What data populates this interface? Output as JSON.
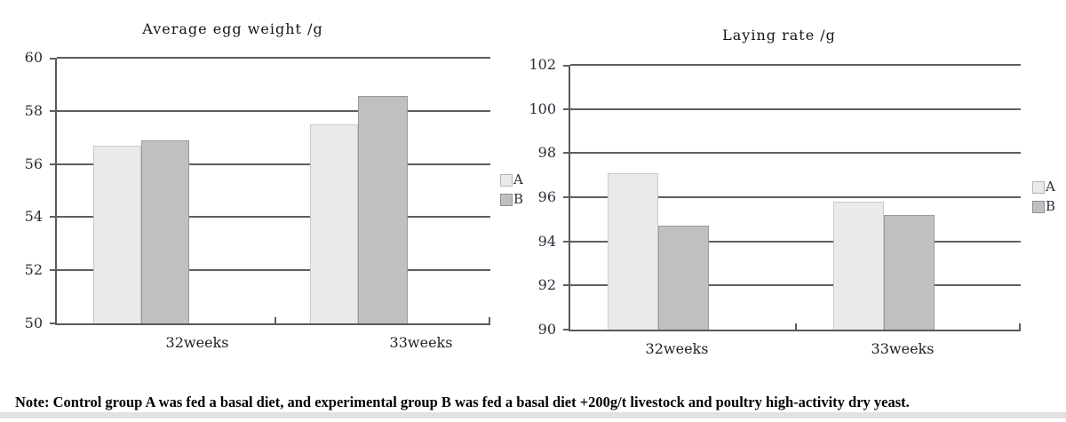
{
  "note": "Note: Control group A was fed a basal diet, and experimental group B was fed a basal diet +200g/t livestock and poultry high-activity dry yeast.",
  "chart_data": [
    {
      "type": "bar",
      "title": "Average egg weight /g",
      "categories": [
        "32weeks",
        "33weeks"
      ],
      "series": [
        {
          "name": "A",
          "values": [
            56.7,
            57.5
          ]
        },
        {
          "name": "B",
          "values": [
            56.9,
            58.55
          ]
        }
      ],
      "ylim": [
        50,
        60
      ],
      "yticks": [
        50,
        52,
        54,
        56,
        58,
        60
      ],
      "grid": true,
      "legend_position": "right",
      "colors": {
        "A": "#eaeaea",
        "B": "#c0c0c0",
        "A_border": "#c9c9c9",
        "B_border": "#9a9a9a",
        "axis": "#5e5e5e"
      }
    },
    {
      "type": "bar",
      "title": "Laying rate /g",
      "categories": [
        "32weeks",
        "33weeks"
      ],
      "series": [
        {
          "name": "A",
          "values": [
            97.1,
            95.8
          ]
        },
        {
          "name": "B",
          "values": [
            94.7,
            95.2
          ]
        }
      ],
      "ylim": [
        90,
        102
      ],
      "yticks": [
        90,
        92,
        94,
        96,
        98,
        100,
        102
      ],
      "grid": true,
      "legend_position": "right",
      "colors": {
        "A": "#eaeaea",
        "B": "#c0c0c0",
        "A_border": "#c9c9c9",
        "B_border": "#9a9a9a",
        "axis": "#5e5e5e"
      }
    }
  ]
}
